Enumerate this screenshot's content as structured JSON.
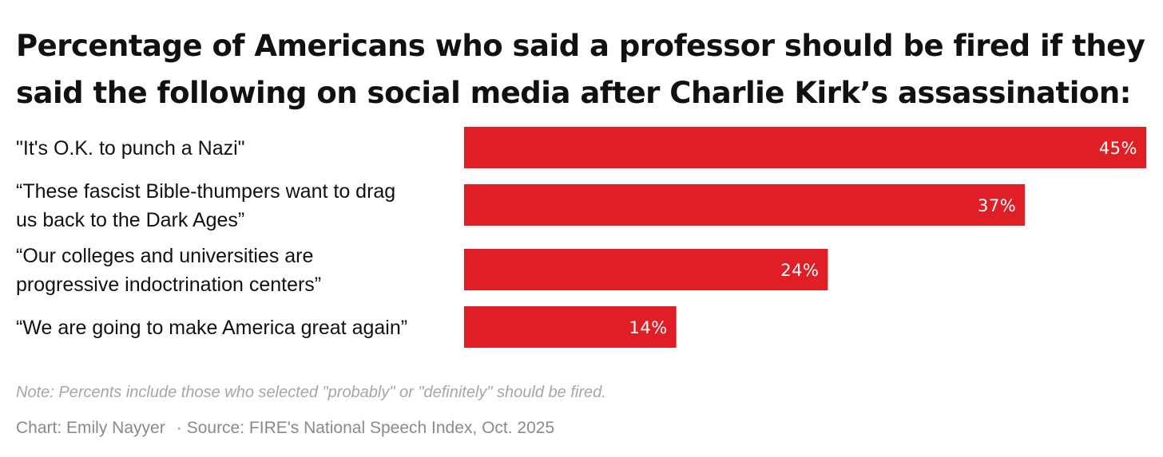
{
  "title_lines": [
    "Percentage of Americans who said a professor should be fired if they",
    "said the following on social media after Charlie Kirk’s assassination:"
  ],
  "colors": {
    "bar": "#e01e26",
    "text": "#111111",
    "muted": "#8a8a8a"
  },
  "chart_data": {
    "type": "bar",
    "orientation": "horizontal",
    "title": "Percentage of Americans who said a professor should be fired if they said the following on social media after Charlie Kirk’s assassination:",
    "categories": [
      [
        "\"It's O.K. to punch a Nazi\""
      ],
      [
        "“These fascist Bible-thumpers want to drag",
        "us back to the Dark Ages”"
      ],
      [
        "“Our colleges and universities are",
        "progressive indoctrination centers”"
      ],
      [
        "“We are going to make America great again”"
      ]
    ],
    "values": [
      45,
      37,
      24,
      14
    ],
    "value_labels": [
      "45%",
      "37%",
      "24%",
      "14%"
    ],
    "xlim": [
      0,
      45
    ],
    "xlabel": "",
    "ylabel": "",
    "grid": false
  },
  "note": "Note: Percents include those who selected \"probably\" or \"definitely\" should be fired.",
  "credit": {
    "chart_by": "Chart: Emily Nayyer",
    "separator": "·",
    "source": "Source: FIRE's National Speech Index, Oct. 2025"
  }
}
